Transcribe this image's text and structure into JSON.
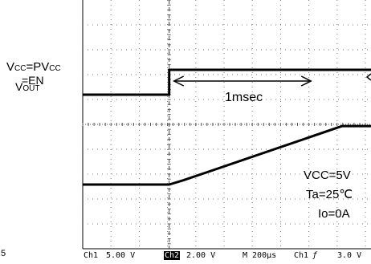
{
  "scope_labels": {
    "vcc_main": "V",
    "vcc_sub": "CC",
    "eq_pvcc": "=PV",
    "pvcc_sub": "CC",
    "en": "=EN",
    "vout_main": "V",
    "vout_sub": "OUT",
    "measure": "1msec",
    "condition_vcc": "VCC=5V",
    "condition_ta": "Ta=25℃",
    "condition_io": "Io=0A",
    "edge_digit": "5"
  },
  "status_bar": {
    "ch1": "Ch1",
    "ch1_scale": "5.00 V",
    "ch2": "Ch2",
    "ch2_scale": "2.00 V",
    "timebase": "M 200μs",
    "trigger_src": "Ch1",
    "trigger_edge": "ƒ",
    "trigger_level": "3.0 V"
  },
  "chart_data": {
    "type": "line",
    "x_unit": "μs",
    "x_per_division": 200,
    "xlim": [
      -600,
      1400
    ],
    "series": [
      {
        "channel": "Ch1",
        "volts_per_division": 5.0,
        "points": [
          [
            -600,
            0
          ],
          [
            0,
            0
          ],
          [
            0,
            5.0
          ],
          [
            1400,
            5.0
          ]
        ]
      },
      {
        "channel": "Ch2",
        "volts_per_division": 2.0,
        "points": [
          [
            -600,
            0
          ],
          [
            0,
            0
          ],
          [
            100,
            0.35
          ],
          [
            1200,
            4.7
          ],
          [
            1400,
            4.7
          ]
        ]
      }
    ],
    "grid": true
  }
}
